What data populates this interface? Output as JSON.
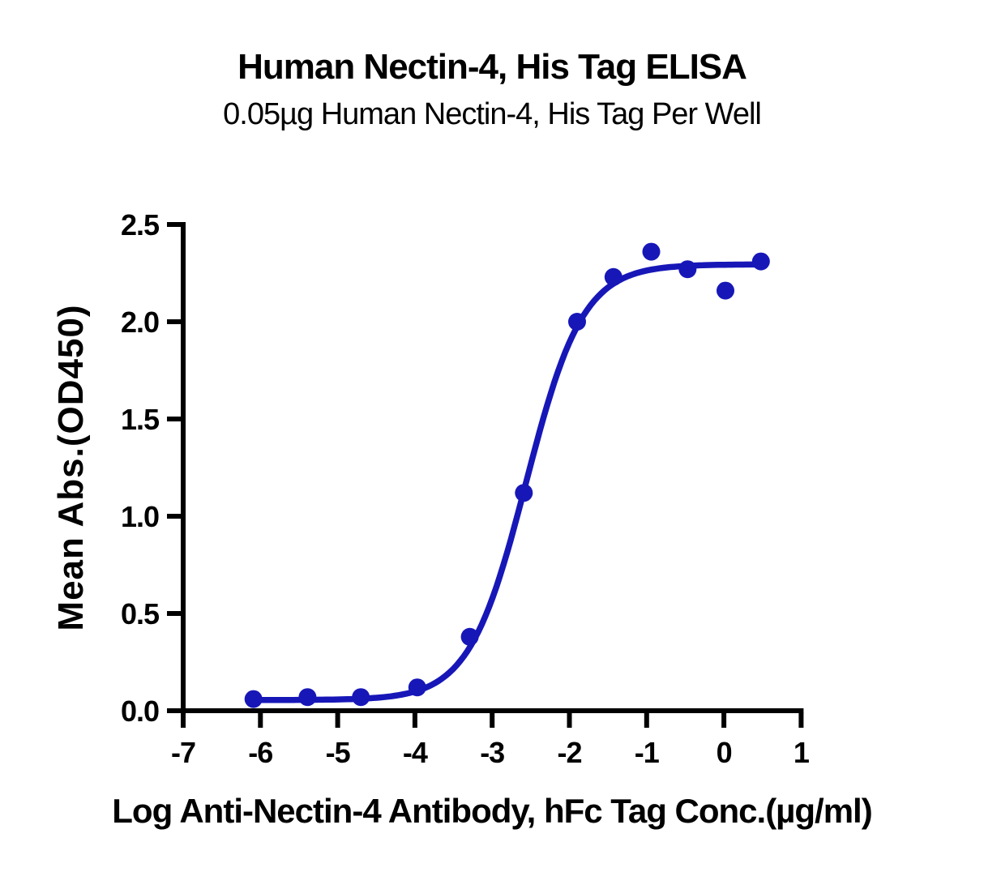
{
  "title": "Human Nectin-4, His Tag ELISA",
  "subtitle": "0.05µg Human Nectin-4, His Tag Per Well",
  "chart_data": {
    "type": "scatter",
    "title": "Human Nectin-4, His Tag ELISA",
    "subtitle": "0.05µg Human Nectin-4, His Tag Per Well",
    "xlabel": "Log Anti-Nectin-4 Antibody, hFc Tag Conc.(µg/ml)",
    "ylabel": "Mean Abs.(OD450)",
    "xlim": [
      -7,
      1
    ],
    "ylim": [
      0,
      2.5
    ],
    "x_ticks": [
      -7,
      -6,
      -5,
      -4,
      -3,
      -2,
      -1,
      0,
      1
    ],
    "x_tick_labels": [
      "-7",
      "-6",
      "-5",
      "-4",
      "-3",
      "-2",
      "-1",
      "0",
      "1"
    ],
    "y_ticks": [
      0,
      0.5,
      1.0,
      1.5,
      2.0,
      2.5
    ],
    "y_tick_labels": [
      "0.0",
      "0.5",
      "1.0",
      "1.5",
      "2.0",
      "2.5"
    ],
    "grid": false,
    "legend": "none",
    "series": [
      {
        "name": "Anti-Nectin-4 Antibody, hFc Tag",
        "x": [
          -6.09,
          -5.39,
          -4.7,
          -3.97,
          -3.29,
          -2.59,
          -1.9,
          -1.43,
          -0.94,
          -0.47,
          0.02,
          0.48
        ],
        "y": [
          0.06,
          0.07,
          0.07,
          0.12,
          0.38,
          1.12,
          2.0,
          2.23,
          2.36,
          2.27,
          2.16,
          2.31
        ]
      }
    ],
    "fit_curve": {
      "model": "4PL sigmoidal",
      "bottom": 0.055,
      "top": 2.295,
      "log_ec50": -2.56,
      "hill_slope": 1.18,
      "x_start": -6.09,
      "x_end": 0.48
    },
    "marker_color": "#1717B8",
    "line_color": "#1717B8",
    "axis_color": "#000000"
  }
}
